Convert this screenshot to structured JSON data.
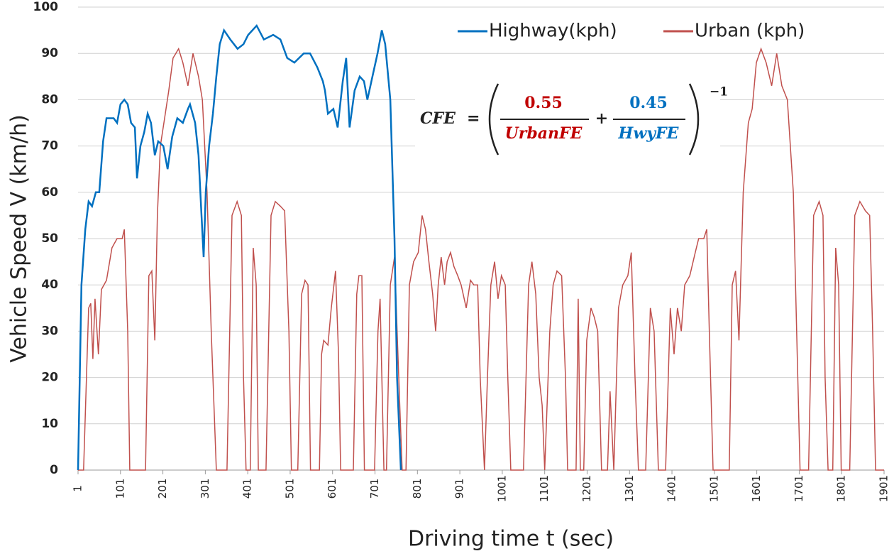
{
  "chart_data": {
    "type": "line",
    "xlabel": "Driving time t (sec)",
    "ylabel": "Vehicle Speed V (km/h)",
    "xlim": [
      1,
      1901
    ],
    "xticks": [
      1,
      101,
      201,
      301,
      401,
      501,
      601,
      701,
      801,
      901,
      1001,
      1101,
      1201,
      1301,
      1401,
      1501,
      1601,
      1701,
      1801,
      1901
    ],
    "ylim": [
      0,
      100
    ],
    "yticks": [
      0,
      10,
      20,
      30,
      40,
      50,
      60,
      70,
      80,
      90,
      100
    ],
    "grid": true,
    "legend": "top-right",
    "annotation": {
      "lhs": "CFE",
      "eq": "=",
      "num1": "0.55",
      "den1": "UrbanFE",
      "plus": "+",
      "num2": "0.45",
      "den2": "HwyFE",
      "exp": "−1"
    },
    "series": [
      {
        "name": "Highway(kph)",
        "color": "#0070c0",
        "x": [
          1,
          9,
          18,
          26,
          34,
          43,
          51,
          60,
          68,
          85,
          93,
          101,
          110,
          118,
          126,
          135,
          140,
          148,
          157,
          165,
          173,
          182,
          190,
          202,
          212,
          223,
          235,
          248,
          260,
          265,
          277,
          285,
          292,
          297,
          302,
          310,
          319,
          327,
          335,
          345,
          360,
          377,
          391,
          402,
          422,
          439,
          461,
          478,
          494,
          511,
          533,
          548,
          565,
          578,
          583,
          590,
          603,
          613,
          625,
          633,
          641,
          653,
          665,
          675,
          683,
          695,
          707,
          717,
          725,
          737,
          747,
          753,
          762
        ],
        "values": [
          0,
          40,
          52,
          58,
          57,
          60,
          60,
          71,
          76,
          76,
          75,
          79,
          80,
          79,
          75,
          74,
          63,
          70,
          73,
          77,
          75,
          68,
          71,
          70,
          65,
          72,
          76,
          75,
          78,
          79,
          75,
          68,
          55,
          46,
          60,
          70,
          77,
          85,
          92,
          95,
          93,
          91,
          92,
          94,
          96,
          93,
          94,
          93,
          89,
          88,
          90,
          90,
          87,
          84,
          82,
          77,
          78,
          74,
          84,
          89,
          74,
          82,
          85,
          84,
          80,
          85,
          90,
          95,
          92,
          80,
          50,
          20,
          0
        ]
      },
      {
        "name": "Urban (kph)",
        "color": "#c0504d",
        "x": [
          1,
          14,
          26,
          31,
          36,
          41,
          49,
          56,
          68,
          81,
          93,
          105,
          110,
          118,
          123,
          160,
          168,
          175,
          182,
          188,
          195,
          205,
          215,
          225,
          238,
          248,
          260,
          272,
          285,
          294,
          305,
          315,
          327,
          352,
          364,
          376,
          386,
          391,
          397,
          407,
          414,
          421,
          426,
          444,
          456,
          466,
          478,
          488,
          498,
          504,
          519,
          528,
          536,
          543,
          549,
          570,
          575,
          580,
          590,
          598,
          608,
          615,
          620,
          650,
          658,
          663,
          670,
          676,
          700,
          708,
          713,
          722,
          728,
          737,
          747,
          757,
          765,
          774,
          782,
          792,
          803,
          812,
          820,
          828,
          837,
          844,
          850,
          857,
          865,
          871,
          879,
          887,
          896,
          904,
          916,
          926,
          934,
          943,
          949,
          959,
          966,
          974,
          983,
          991,
          999,
          1008,
          1014,
          1021,
          1051,
          1063,
          1071,
          1080,
          1088,
          1095,
          1101,
          1113,
          1121,
          1130,
          1141,
          1150,
          1155,
          1175,
          1180,
          1185,
          1193,
          1200,
          1210,
          1218,
          1226,
          1235,
          1249,
          1255,
          1264,
          1275,
          1285,
          1297,
          1305,
          1314,
          1322,
          1339,
          1350,
          1359,
          1369,
          1386,
          1397,
          1406,
          1414,
          1423,
          1431,
          1443,
          1456,
          1464,
          1476,
          1483,
          1489,
          1498,
          1536,
          1543,
          1551,
          1559,
          1569,
          1581,
          1590,
          1600,
          1611,
          1623,
          1636,
          1648,
          1660,
          1673,
          1687,
          1695,
          1703,
          1723,
          1735,
          1748,
          1757,
          1762,
          1769,
          1780,
          1787,
          1794,
          1800,
          1820,
          1832,
          1844,
          1857,
          1867,
          1874,
          1881,
          1901
        ],
        "values": [
          0,
          0,
          35,
          36,
          24,
          37,
          25,
          39,
          41,
          48,
          50,
          50,
          52,
          30,
          0,
          0,
          42,
          43,
          28,
          55,
          70,
          76,
          82,
          89,
          91,
          88,
          83,
          90,
          85,
          80,
          60,
          30,
          0,
          0,
          55,
          58,
          55,
          20,
          0,
          0,
          48,
          40,
          0,
          0,
          55,
          58,
          57,
          56,
          30,
          0,
          0,
          38,
          41,
          40,
          0,
          0,
          25,
          28,
          27,
          35,
          43,
          25,
          0,
          0,
          38,
          42,
          42,
          0,
          0,
          30,
          37,
          0,
          0,
          40,
          46,
          20,
          0,
          0,
          40,
          45,
          47,
          55,
          52,
          45,
          38,
          30,
          40,
          46,
          40,
          45,
          47,
          44,
          42,
          40,
          35,
          41,
          40,
          40,
          20,
          0,
          20,
          40,
          45,
          37,
          42,
          40,
          20,
          0,
          0,
          40,
          45,
          38,
          20,
          14,
          0,
          30,
          40,
          43,
          42,
          20,
          0,
          0,
          37,
          0,
          0,
          28,
          35,
          33,
          30,
          0,
          0,
          17,
          0,
          35,
          40,
          42,
          47,
          20,
          0,
          0,
          35,
          30,
          0,
          0,
          35,
          25,
          35,
          30,
          40,
          42,
          47,
          50,
          50,
          52,
          30,
          0,
          0,
          40,
          43,
          28,
          60,
          75,
          78,
          88,
          91,
          88,
          83,
          90,
          83,
          80,
          60,
          30,
          0,
          0,
          55,
          58,
          55,
          20,
          0,
          0,
          48,
          40,
          0,
          0,
          55,
          58,
          56,
          55,
          30,
          0,
          0
        ]
      }
    ]
  }
}
